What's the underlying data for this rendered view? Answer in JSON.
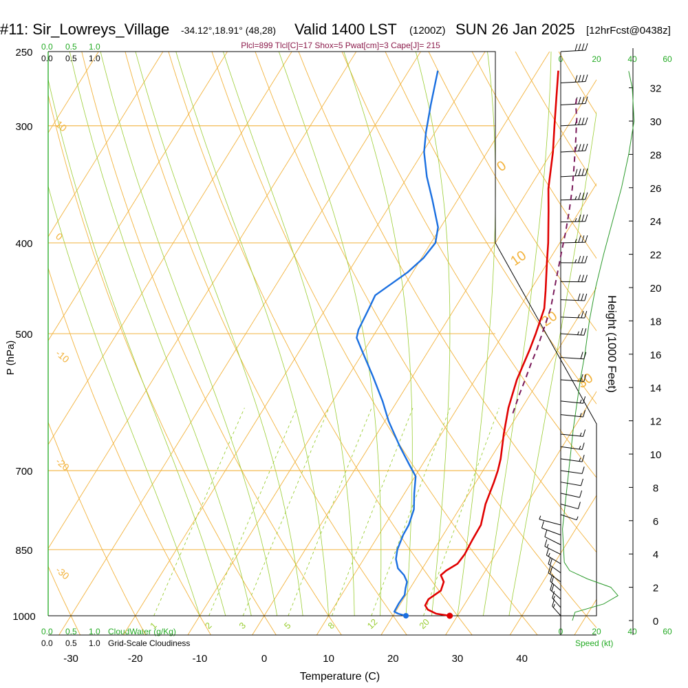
{
  "header": {
    "station": "#11: Sir_Lowreys_Village",
    "coords": "-34.12°,18.91° (48,28)",
    "valid": "Valid 1400 LST",
    "zulu": "(1200Z)",
    "date": "SUN 26 Jan 2025",
    "forecast": "[12hrFcst@0438z]"
  },
  "indices_line": "Plcl=899 Tlcl[C]=17 Shox=5 Pwat[cm]=3 Cape[J]= 215",
  "colors": {
    "temperature": "#e00000",
    "dewpoint": "#1a6fe0",
    "parcel": "#7a1a5a",
    "isobar_isotherm": "#f2b23b",
    "dry_adiabat": "#f2b23b",
    "moist_adiabat": "#9acd32",
    "mixing_ratio": "#9acd32",
    "height_curve": "#2a9a2a",
    "green_label": "#22aa22"
  },
  "left_top_scale": {
    "green": [
      "0.0",
      "0.5",
      "1.0"
    ],
    "black": [
      "0.0",
      "0.5",
      "1.0"
    ]
  },
  "left_bottom_scale": {
    "green": [
      "0.0",
      "0.5",
      "1.0"
    ],
    "green_label": "CloudWater (g/Kg)",
    "black": [
      "0.0",
      "0.5",
      "1.0"
    ],
    "black_label": "Grid-Scale Cloudiness"
  },
  "right_scale": {
    "top_ticks": [
      "0",
      "20",
      "40",
      "60"
    ],
    "bottom_ticks": [
      "0",
      "20",
      "40",
      "60"
    ],
    "speed_label": "Speed (kt)"
  },
  "chart_data": {
    "type": "line",
    "title": "#11: Sir_Lowreys_Village",
    "xlabel": "Temperature (C)",
    "ylabel": "P (hPa)",
    "y2label": "Height (1000 Feet)",
    "x_ticks": [
      -30,
      -20,
      -10,
      0,
      10,
      20,
      30,
      40
    ],
    "p_ticks": [
      250,
      300,
      400,
      500,
      700,
      850,
      1000
    ],
    "height_ticks": [
      0,
      2,
      4,
      6,
      8,
      10,
      12,
      14,
      16,
      18,
      20,
      22,
      24,
      26,
      28,
      30,
      32
    ],
    "mixing_ratio_labels": [
      "1",
      "2",
      "3",
      "5",
      "8",
      "12",
      "20"
    ],
    "dry_adiabat_labels": [
      "10",
      "0",
      "-10",
      "-20",
      "-30"
    ],
    "moist_adiabat_labels": [
      "0",
      "10",
      "20",
      "30"
    ],
    "series": [
      {
        "name": "Temperature",
        "points": [
          [
            1000,
            28.8
          ],
          [
            995,
            26.5
          ],
          [
            985,
            24.8
          ],
          [
            975,
            24.0
          ],
          [
            960,
            23.9
          ],
          [
            940,
            25.0
          ],
          [
            920,
            24.6
          ],
          [
            905,
            23.5
          ],
          [
            895,
            23.9
          ],
          [
            880,
            25.0
          ],
          [
            860,
            25.2
          ],
          [
            830,
            25.0
          ],
          [
            800,
            24.9
          ],
          [
            760,
            23.6
          ],
          [
            720,
            22.8
          ],
          [
            700,
            22.3
          ],
          [
            680,
            21.6
          ],
          [
            640,
            19.7
          ],
          [
            600,
            17.9
          ],
          [
            560,
            16.5
          ],
          [
            520,
            15.6
          ],
          [
            500,
            15.0
          ],
          [
            470,
            13.9
          ],
          [
            450,
            12.4
          ],
          [
            420,
            9.9
          ],
          [
            400,
            8.2
          ],
          [
            370,
            5.2
          ],
          [
            350,
            3.0
          ],
          [
            320,
            0.2
          ],
          [
            300,
            -2.1
          ],
          [
            280,
            -4.5
          ],
          [
            262,
            -6.8
          ]
        ]
      },
      {
        "name": "Dewpoint",
        "points": [
          [
            1000,
            22.0
          ],
          [
            995,
            20.6
          ],
          [
            990,
            19.8
          ],
          [
            970,
            19.7
          ],
          [
            950,
            19.8
          ],
          [
            935,
            19.3
          ],
          [
            920,
            18.9
          ],
          [
            905,
            17.8
          ],
          [
            890,
            16.2
          ],
          [
            870,
            15.0
          ],
          [
            850,
            14.3
          ],
          [
            820,
            13.8
          ],
          [
            800,
            13.7
          ],
          [
            770,
            13.0
          ],
          [
            740,
            11.5
          ],
          [
            710,
            10.1
          ],
          [
            690,
            8.0
          ],
          [
            660,
            4.8
          ],
          [
            620,
            0.6
          ],
          [
            590,
            -2.3
          ],
          [
            555,
            -6.2
          ],
          [
            520,
            -10.5
          ],
          [
            505,
            -12.4
          ],
          [
            495,
            -12.9
          ],
          [
            470,
            -13.3
          ],
          [
            455,
            -13.6
          ],
          [
            430,
            -10.8
          ],
          [
            415,
            -9.7
          ],
          [
            400,
            -9.3
          ],
          [
            385,
            -10.4
          ],
          [
            360,
            -13.9
          ],
          [
            340,
            -17.0
          ],
          [
            320,
            -19.8
          ],
          [
            305,
            -21.4
          ],
          [
            285,
            -23.3
          ],
          [
            262,
            -25.5
          ]
        ]
      },
      {
        "name": "Parcel",
        "points": [
          [
            608,
            19.1
          ],
          [
            580,
            18.3
          ],
          [
            560,
            17.8
          ],
          [
            540,
            17.2
          ],
          [
            520,
            16.7
          ],
          [
            500,
            16.0
          ],
          [
            470,
            14.9
          ],
          [
            440,
            13.1
          ],
          [
            410,
            11.2
          ],
          [
            390,
            9.9
          ],
          [
            370,
            8.4
          ],
          [
            350,
            6.7
          ],
          [
            330,
            4.7
          ],
          [
            310,
            2.5
          ],
          [
            295,
            0.7
          ],
          [
            285,
            -0.8
          ],
          [
            278,
            -1.6
          ]
        ]
      }
    ],
    "surface_points": {
      "temperature": 28.8,
      "dewpoint": 22.0
    },
    "height_profile": [
      [
        0.0,
        6.5
      ],
      [
        0.5,
        8.0
      ],
      [
        1.0,
        24.0
      ],
      [
        1.5,
        32.0
      ],
      [
        2.0,
        28.0
      ],
      [
        2.5,
        15.0
      ],
      [
        3.0,
        5.0
      ],
      [
        3.5,
        2.0
      ],
      [
        4.5,
        1.5
      ],
      [
        5.5,
        1.0
      ],
      [
        6.5,
        2.0
      ],
      [
        7.5,
        3.0
      ],
      [
        8.5,
        4.0
      ],
      [
        10.0,
        5.5
      ],
      [
        11.5,
        7.0
      ],
      [
        13.0,
        9.0
      ],
      [
        14.5,
        11.0
      ],
      [
        16.0,
        13.5
      ],
      [
        18.0,
        16.0
      ],
      [
        20.0,
        19.5
      ],
      [
        22.0,
        24.0
      ],
      [
        24.0,
        29.0
      ],
      [
        26.0,
        34.0
      ],
      [
        28.0,
        38.0
      ],
      [
        30.0,
        41.0
      ],
      [
        32.0,
        40.0
      ],
      [
        33.0,
        38.0
      ]
    ],
    "wind_profile": [
      [
        250,
        40,
        270
      ],
      [
        270,
        40,
        270
      ],
      [
        285,
        40,
        270
      ],
      [
        300,
        40,
        270
      ],
      [
        320,
        40,
        270
      ],
      [
        340,
        40,
        270
      ],
      [
        360,
        35,
        275
      ],
      [
        380,
        35,
        275
      ],
      [
        400,
        35,
        275
      ],
      [
        420,
        35,
        280
      ],
      [
        440,
        30,
        280
      ],
      [
        460,
        30,
        285
      ],
      [
        480,
        25,
        285
      ],
      [
        500,
        25,
        290
      ],
      [
        530,
        20,
        290
      ],
      [
        560,
        20,
        290
      ],
      [
        590,
        15,
        295
      ],
      [
        610,
        15,
        295
      ],
      [
        640,
        15,
        295
      ],
      [
        660,
        15,
        300
      ],
      [
        680,
        15,
        300
      ],
      [
        700,
        10,
        300
      ],
      [
        720,
        10,
        305
      ],
      [
        740,
        10,
        310
      ],
      [
        760,
        10,
        315
      ],
      [
        780,
        5,
        320
      ],
      [
        800,
        5,
        120
      ],
      [
        820,
        10,
        130
      ],
      [
        840,
        10,
        140
      ],
      [
        860,
        15,
        140
      ],
      [
        880,
        15,
        145
      ],
      [
        900,
        20,
        150
      ],
      [
        920,
        20,
        150
      ],
      [
        940,
        20,
        155
      ],
      [
        960,
        20,
        155
      ],
      [
        980,
        15,
        160
      ],
      [
        1000,
        15,
        160
      ]
    ]
  }
}
